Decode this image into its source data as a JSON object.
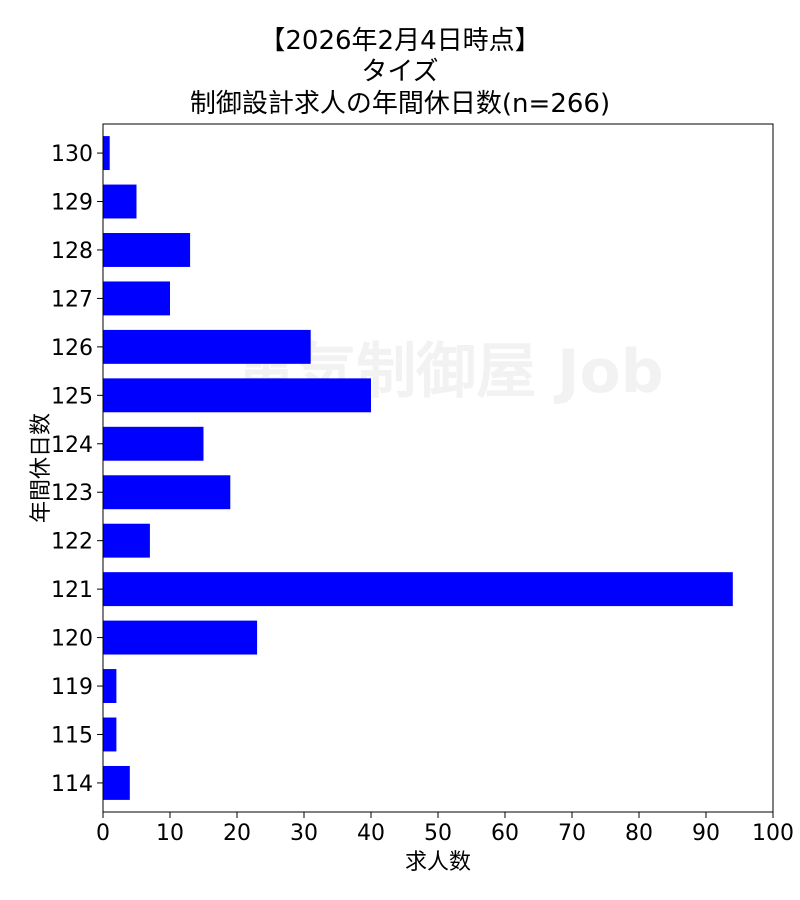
{
  "chart_data": {
    "type": "bar",
    "orientation": "horizontal",
    "title_lines": [
      "【2026年2月4日時点】",
      "タイズ",
      "制御設計求人の年間休日数(n=266)"
    ],
    "xlabel": "求人数",
    "ylabel": "年間休日数",
    "categories": [
      "130",
      "129",
      "128",
      "127",
      "126",
      "125",
      "124",
      "123",
      "122",
      "121",
      "120",
      "119",
      "115",
      "114"
    ],
    "values": [
      1,
      5,
      13,
      10,
      31,
      40,
      15,
      19,
      7,
      94,
      23,
      2,
      2,
      4
    ],
    "xlim": [
      0,
      100
    ],
    "xticks": [
      0,
      10,
      20,
      30,
      40,
      50,
      60,
      70,
      80,
      90,
      100
    ],
    "bar_color": "#0000ff",
    "grid": false,
    "watermark": "電気制御屋 Job"
  }
}
